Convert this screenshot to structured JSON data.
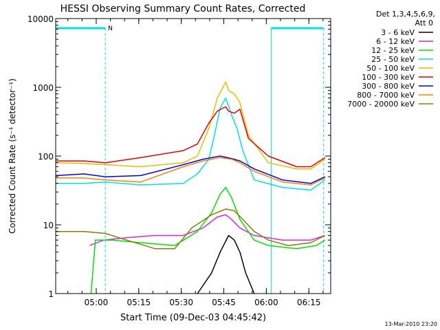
{
  "chart_data": {
    "type": "line",
    "title": "HESSI Observing Summary Count Rates, Corrected",
    "xlabel": "Start Time (09-Dec-03 04:45:42)",
    "ylabel": "Corrected Count Rate (s⁻¹ detector⁻¹)",
    "y_scale": "log",
    "ylim": [
      1,
      10000
    ],
    "xlim_minutes_after_start": [
      0,
      97
    ],
    "x_tick_labels": [
      "05:00",
      "05:15",
      "05:30",
      "05:45",
      "06:00",
      "06:15"
    ],
    "x_tick_minutes_after_start": [
      14.3,
      29.3,
      44.3,
      59.3,
      74.3,
      89.3
    ],
    "y_tick_labels": [
      "1",
      "10",
      "100",
      "1000",
      "10000"
    ],
    "y_tick_values": [
      1,
      10,
      100,
      1000,
      10000
    ],
    "grid": false,
    "legend_placement": "right",
    "legend_header": [
      "Det 1,3,4,5,6,9,",
      "Att 0"
    ],
    "footer_date": "13-Mar-2010 23:20",
    "flags": {
      "bar_label": "N",
      "night_intervals_minutes": [
        [
          0,
          17.5
        ],
        [
          76.0,
          94.5
        ]
      ],
      "dashed_vertical_minutes": [
        17.5,
        94.5
      ],
      "solid_vertical_minutes": [
        0,
        76.0
      ]
    },
    "series": [
      {
        "name": "3 - 6 keV",
        "color": "#000000",
        "x": [
          50,
          55,
          58,
          61,
          63,
          65,
          67,
          70
        ],
        "y": [
          1,
          2,
          4,
          7,
          6,
          4,
          2,
          1
        ]
      },
      {
        "name": "6 - 12 keV",
        "color": "#e020e0",
        "x": [
          12,
          17,
          25,
          35,
          45,
          52,
          57,
          60,
          62,
          65,
          70,
          80,
          85,
          90,
          95
        ],
        "y": [
          5,
          6,
          6.5,
          7,
          7,
          9,
          13,
          14,
          12,
          9,
          7,
          6,
          6,
          6,
          7
        ]
      },
      {
        "name": "12 - 25 keV",
        "color": "#00e000",
        "x": [
          12.5,
          14,
          20,
          30,
          42,
          50,
          55,
          58,
          60,
          62,
          65,
          70,
          75,
          85,
          92,
          95
        ],
        "y": [
          1,
          6,
          6,
          5.5,
          5,
          8,
          15,
          28,
          35,
          25,
          12,
          6,
          5,
          4.5,
          5,
          6
        ]
      },
      {
        "name": "25 - 50 keV",
        "color": "#00e0e0",
        "x": [
          0,
          10,
          17.5,
          30,
          45,
          50,
          54,
          56,
          58,
          60,
          62,
          64,
          66,
          70,
          80,
          90,
          95
        ],
        "y": [
          40,
          40,
          42,
          38,
          40,
          55,
          90,
          200,
          500,
          700,
          400,
          250,
          120,
          45,
          35,
          32,
          45
        ]
      },
      {
        "name": "50 - 100 keV",
        "color": "#e0c000",
        "x": [
          0,
          10,
          17.5,
          30,
          45,
          50,
          54,
          57,
          59,
          60,
          61,
          63,
          65,
          68,
          75,
          85,
          90,
          95
        ],
        "y": [
          80,
          78,
          75,
          70,
          80,
          100,
          250,
          700,
          1000,
          1200,
          900,
          800,
          600,
          200,
          80,
          65,
          65,
          90
        ]
      },
      {
        "name": "100 - 300 keV",
        "color": "#e00000",
        "x": [
          0,
          10,
          17.5,
          30,
          45,
          50,
          54,
          57,
          59,
          60,
          61,
          63,
          65,
          68,
          75,
          85,
          90,
          95
        ],
        "y": [
          85,
          85,
          80,
          95,
          120,
          150,
          300,
          450,
          500,
          520,
          450,
          420,
          480,
          180,
          100,
          70,
          70,
          95
        ]
      },
      {
        "name": "300 - 800 keV",
        "color": "#0000e0",
        "x": [
          0,
          10,
          17.5,
          30,
          45,
          52,
          58,
          62,
          65,
          70,
          80,
          90,
          95
        ],
        "y": [
          52,
          55,
          50,
          52,
          75,
          90,
          100,
          92,
          85,
          65,
          45,
          40,
          50
        ]
      },
      {
        "name": "800 - 7000 keV",
        "color": "#ff8000",
        "x": [
          0,
          10,
          17.5,
          30,
          45,
          52,
          58,
          62,
          65,
          70,
          80,
          90,
          95
        ],
        "y": [
          48,
          48,
          45,
          42,
          70,
          85,
          95,
          90,
          80,
          60,
          42,
          38,
          48
        ]
      },
      {
        "name": "7000 - 20000 keV",
        "color": "#808000",
        "x": [
          0,
          10,
          17.5,
          25,
          35,
          42,
          48,
          55,
          60,
          63,
          66,
          70,
          75,
          82,
          90,
          95
        ],
        "y": [
          8,
          8,
          7.5,
          6,
          4.5,
          4.5,
          9,
          14,
          17,
          16,
          12,
          8,
          6,
          5,
          5.5,
          7
        ]
      }
    ]
  }
}
